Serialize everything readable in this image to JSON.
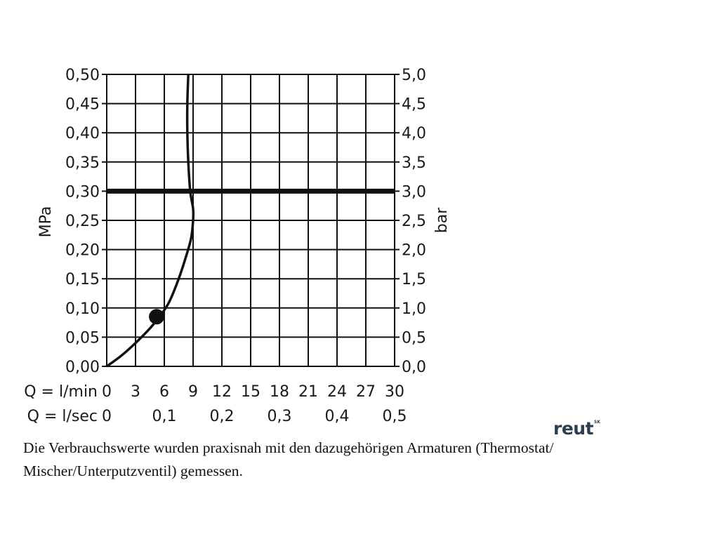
{
  "chart_data": {
    "type": "line",
    "title": "",
    "ylabel_left": "MPa",
    "ylabel_right": "bar",
    "x_axis_rows": [
      {
        "label": "Q = l/min",
        "ticks": [
          "0",
          "3",
          "6",
          "9",
          "12",
          "15",
          "18",
          "21",
          "24",
          "27",
          "30"
        ],
        "values": [
          0,
          3,
          6,
          9,
          12,
          15,
          18,
          21,
          24,
          27,
          30
        ]
      },
      {
        "label": "Q = l/sec",
        "ticks": [
          "0",
          "0,1",
          "0,2",
          "0,3",
          "0,4",
          "0,5"
        ],
        "values": [
          0,
          6,
          12,
          18,
          24,
          30
        ]
      }
    ],
    "xlim": [
      0,
      30
    ],
    "ylim": [
      0,
      0.5
    ],
    "y_ticks_left": [
      "0,00",
      "0,05",
      "0,10",
      "0,15",
      "0,20",
      "0,25",
      "0,30",
      "0,35",
      "0,40",
      "0,45",
      "0,50"
    ],
    "y_ticks_right": [
      "0,0",
      "0,5",
      "1,0",
      "1,5",
      "2,0",
      "2,5",
      "3,0",
      "3,5",
      "4,0",
      "4,5",
      "5,0"
    ],
    "grid": true,
    "series": [
      {
        "x": [
          0,
          1.5,
          3,
          4.5,
          5.5,
          6.5,
          7.5,
          8.3,
          8.8,
          9.0,
          9.0,
          8.7,
          8.5,
          8.4,
          8.4,
          8.5
        ],
        "y": [
          0,
          0.018,
          0.04,
          0.065,
          0.085,
          0.11,
          0.15,
          0.19,
          0.22,
          0.25,
          0.27,
          0.3,
          0.35,
          0.4,
          0.45,
          0.5
        ]
      }
    ],
    "reference_line": {
      "y": 0.3
    },
    "marker": {
      "x": 5.2,
      "y": 0.085
    },
    "drop_line": {
      "x": 9.0,
      "y_from": 0,
      "y_to": 0.22
    }
  },
  "caption": {
    "line1": "Die Verbrauchswerte wurden praxisnah mit den dazugehörigen Armaturen (Thermostat/",
    "line2": "Mischer/Unterputzventil) gemessen."
  },
  "logo": {
    "text": "reut",
    "superscript": "SK"
  }
}
